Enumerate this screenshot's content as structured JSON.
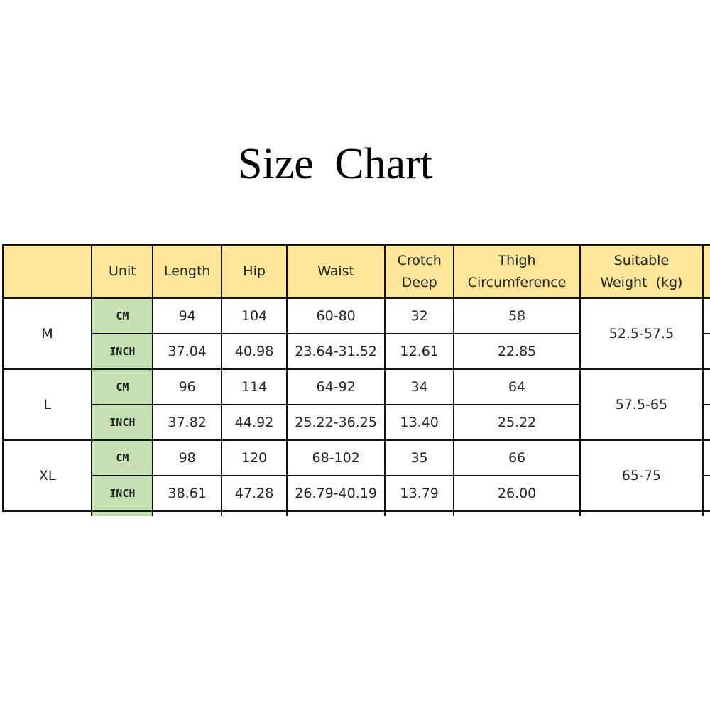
{
  "title": "Size Chart",
  "colors": {
    "header_bg": "#ffe699",
    "unit_bg": "#c6e0b4",
    "border": "#111111"
  },
  "headers": [
    "",
    "Unit",
    "Length",
    "Hip",
    "Waist",
    "Crotch Deep",
    "Thigh Circumference",
    "Suitable Weight  (kg)"
  ],
  "sizes": [
    {
      "size": "M",
      "weight": "52.5-57.5",
      "cm": {
        "unit": "CM",
        "values": [
          "94",
          "104",
          "60-80",
          "32",
          "58"
        ]
      },
      "inch": {
        "unit": "INCH",
        "values": [
          "37.04",
          "40.98",
          "23.64-31.52",
          "12.61",
          "22.85"
        ]
      }
    },
    {
      "size": "L",
      "weight": "57.5-65",
      "cm": {
        "unit": "CM",
        "values": [
          "96",
          "114",
          "64-92",
          "34",
          "64"
        ]
      },
      "inch": {
        "unit": "INCH",
        "values": [
          "37.82",
          "44.92",
          "25.22-36.25",
          "13.40",
          "25.22"
        ]
      }
    },
    {
      "size": "XL",
      "weight": "65-75",
      "cm": {
        "unit": "CM",
        "values": [
          "98",
          "120",
          "68-102",
          "35",
          "66"
        ]
      },
      "inch": {
        "unit": "INCH",
        "values": [
          "38.61",
          "47.28",
          "26.79-40.19",
          "13.79",
          "26.00"
        ]
      }
    }
  ]
}
